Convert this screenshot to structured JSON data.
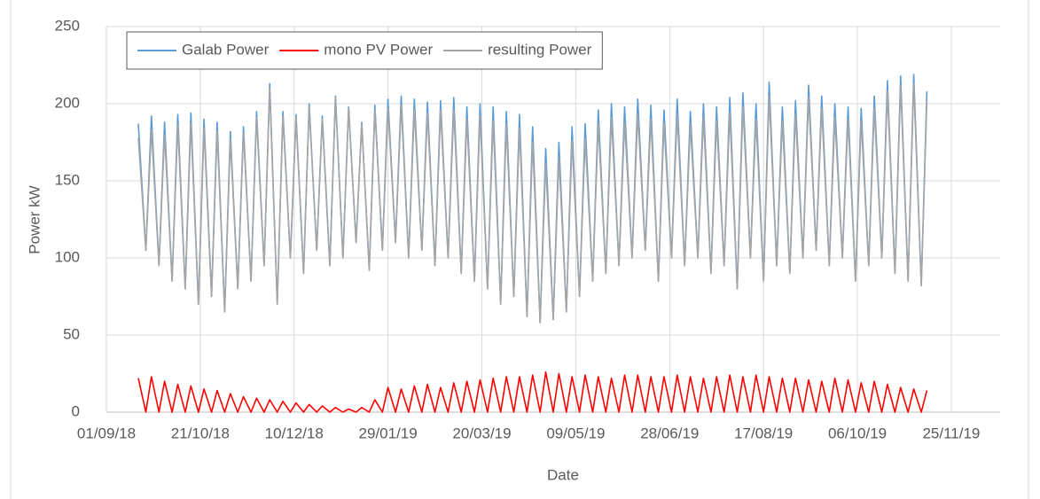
{
  "chart_data": {
    "type": "line",
    "x_label": "Date",
    "y_label": "Power kW",
    "xlim": [
      "2018-09-01",
      "2019-12-21"
    ],
    "xticks": [
      {
        "value": "2018-09-01",
        "label": "01/09/18"
      },
      {
        "value": "2018-10-21",
        "label": "21/10/18"
      },
      {
        "value": "2018-12-10",
        "label": "10/12/18"
      },
      {
        "value": "2019-01-29",
        "label": "29/01/19"
      },
      {
        "value": "2019-03-20",
        "label": "20/03/19"
      },
      {
        "value": "2019-05-09",
        "label": "09/05/19"
      },
      {
        "value": "2019-06-28",
        "label": "28/06/19"
      },
      {
        "value": "2019-08-17",
        "label": "17/08/19"
      },
      {
        "value": "2019-10-06",
        "label": "06/10/19"
      },
      {
        "value": "2019-11-25",
        "label": "25/11/19"
      }
    ],
    "ylim": [
      0,
      250
    ],
    "yticks": [
      0,
      50,
      100,
      150,
      200,
      250
    ],
    "grid": true,
    "legend": "top-left",
    "x": [
      "2018-09-18",
      "2018-09-22",
      "2018-09-25",
      "2018-09-29",
      "2018-10-02",
      "2018-10-06",
      "2018-10-09",
      "2018-10-13",
      "2018-10-16",
      "2018-10-20",
      "2018-10-23",
      "2018-10-27",
      "2018-10-30",
      "2018-11-03",
      "2018-11-06",
      "2018-11-10",
      "2018-11-13",
      "2018-11-17",
      "2018-11-20",
      "2018-11-24",
      "2018-11-27",
      "2018-12-01",
      "2018-12-04",
      "2018-12-08",
      "2018-12-11",
      "2018-12-15",
      "2018-12-18",
      "2018-12-22",
      "2018-12-25",
      "2018-12-29",
      "2019-01-01",
      "2019-01-05",
      "2019-01-08",
      "2019-01-12",
      "2019-01-15",
      "2019-01-19",
      "2019-01-22",
      "2019-01-26",
      "2019-01-29",
      "2019-02-02",
      "2019-02-05",
      "2019-02-09",
      "2019-02-12",
      "2019-02-16",
      "2019-02-19",
      "2019-02-23",
      "2019-02-26",
      "2019-03-02",
      "2019-03-05",
      "2019-03-09",
      "2019-03-12",
      "2019-03-16",
      "2019-03-19",
      "2019-03-23",
      "2019-03-26",
      "2019-03-30",
      "2019-04-02",
      "2019-04-06",
      "2019-04-09",
      "2019-04-13",
      "2019-04-16",
      "2019-04-20",
      "2019-04-23",
      "2019-04-27",
      "2019-04-30",
      "2019-05-04",
      "2019-05-07",
      "2019-05-11",
      "2019-05-14",
      "2019-05-18",
      "2019-05-21",
      "2019-05-25",
      "2019-05-28",
      "2019-06-01",
      "2019-06-04",
      "2019-06-08",
      "2019-06-11",
      "2019-06-15",
      "2019-06-18",
      "2019-06-22",
      "2019-06-25",
      "2019-06-29",
      "2019-07-02",
      "2019-07-06",
      "2019-07-09",
      "2019-07-13",
      "2019-07-16",
      "2019-07-20",
      "2019-07-23",
      "2019-07-27",
      "2019-07-30",
      "2019-08-03",
      "2019-08-06",
      "2019-08-10",
      "2019-08-13",
      "2019-08-17",
      "2019-08-20",
      "2019-08-24",
      "2019-08-27",
      "2019-08-31",
      "2019-09-03",
      "2019-09-07",
      "2019-09-10",
      "2019-09-14",
      "2019-09-17",
      "2019-09-21",
      "2019-09-24",
      "2019-09-28",
      "2019-10-01",
      "2019-10-05",
      "2019-10-08",
      "2019-10-12",
      "2019-10-15",
      "2019-10-19",
      "2019-10-22",
      "2019-10-26",
      "2019-10-29",
      "2019-11-02",
      "2019-11-05",
      "2019-11-09",
      "2019-11-12"
    ],
    "series": [
      {
        "name": "Galab Power",
        "color": "#5b9bd5",
        "values": [
          187,
          105,
          192,
          95,
          188,
          85,
          193,
          80,
          194,
          70,
          190,
          75,
          188,
          65,
          182,
          80,
          185,
          85,
          195,
          95,
          213,
          70,
          195,
          100,
          193,
          90,
          200,
          105,
          192,
          95,
          205,
          100,
          198,
          110,
          188,
          92,
          199,
          105,
          203,
          110,
          205,
          100,
          203,
          105,
          201,
          95,
          202,
          100,
          204,
          90,
          198,
          85,
          200,
          80,
          198,
          70,
          195,
          75,
          193,
          62,
          185,
          58,
          171,
          60,
          175,
          65,
          185,
          75,
          187,
          85,
          196,
          90,
          200,
          95,
          198,
          100,
          203,
          105,
          199,
          85,
          196,
          100,
          203,
          95,
          195,
          100,
          200,
          90,
          198,
          95,
          204,
          80,
          207,
          100,
          200,
          85,
          214,
          95,
          198,
          90,
          202,
          100,
          212,
          105,
          205,
          95,
          200,
          100,
          198,
          85,
          197,
          95,
          205,
          100,
          215,
          90,
          218,
          85,
          219,
          82,
          208
        ]
      },
      {
        "name": "mono PV Power",
        "color": "#ff0000",
        "values": [
          22,
          0,
          23,
          0,
          20,
          0,
          18,
          0,
          17,
          0,
          15,
          0,
          14,
          0,
          12,
          0,
          10,
          0,
          9,
          0,
          8,
          0,
          7,
          0,
          6,
          0,
          5,
          0,
          4,
          0,
          3,
          0,
          2,
          0,
          3,
          0,
          8,
          0,
          16,
          0,
          15,
          0,
          17,
          0,
          18,
          0,
          16,
          0,
          19,
          0,
          20,
          0,
          21,
          0,
          22,
          0,
          23,
          0,
          23,
          0,
          24,
          0,
          26,
          0,
          25,
          0,
          23,
          0,
          24,
          0,
          23,
          0,
          22,
          0,
          24,
          0,
          24,
          0,
          23,
          0,
          23,
          0,
          24,
          0,
          23,
          0,
          22,
          0,
          23,
          0,
          24,
          0,
          23,
          0,
          24,
          0,
          23,
          0,
          22,
          0,
          22,
          0,
          21,
          0,
          20,
          0,
          22,
          0,
          21,
          0,
          19,
          0,
          20,
          0,
          18,
          0,
          16,
          0,
          15,
          0,
          14
        ]
      },
      {
        "name": "resulting Power",
        "color": "#a5a5a5",
        "values": [
          178,
          105,
          183,
          95,
          180,
          85,
          186,
          80,
          187,
          70,
          184,
          75,
          182,
          65,
          177,
          80,
          181,
          85,
          191,
          95,
          210,
          70,
          192,
          100,
          191,
          90,
          198,
          105,
          190,
          95,
          204,
          100,
          197,
          110,
          187,
          92,
          196,
          105,
          197,
          110,
          199,
          100,
          196,
          105,
          194,
          95,
          196,
          100,
          196,
          90,
          190,
          85,
          192,
          80,
          189,
          70,
          186,
          75,
          184,
          62,
          175,
          58,
          161,
          60,
          165,
          65,
          176,
          75,
          177,
          85,
          187,
          90,
          191,
          95,
          188,
          100,
          193,
          105,
          190,
          85,
          187,
          100,
          193,
          95,
          186,
          100,
          191,
          90,
          189,
          95,
          194,
          80,
          198,
          100,
          190,
          85,
          205,
          95,
          189,
          90,
          193,
          100,
          204,
          105,
          197,
          95,
          191,
          100,
          190,
          85,
          189,
          95,
          197,
          100,
          208,
          90,
          212,
          85,
          213,
          82,
          202
        ]
      }
    ]
  }
}
